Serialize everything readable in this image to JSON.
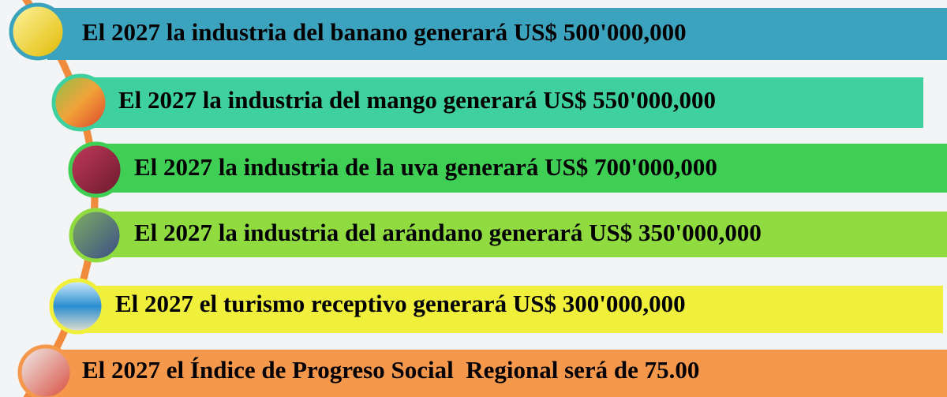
{
  "rows": [
    {
      "text": "El 2027 la industria del banano generará US$ 500'000,000"
    },
    {
      "text": "El 2027 la industria del mango generará US$ 550'000,000"
    },
    {
      "text": "El 2027 la industria de la uva generará US$ 700'000,000"
    },
    {
      "text": "El 2027 la industria del arándano generará US$ 350'000,000"
    },
    {
      "text": "El 2027 el turismo receptivo generará US$ 300'000,000"
    },
    {
      "text": "El 2027 el Índice de Progreso Social  Regional será de 75.00"
    }
  ]
}
